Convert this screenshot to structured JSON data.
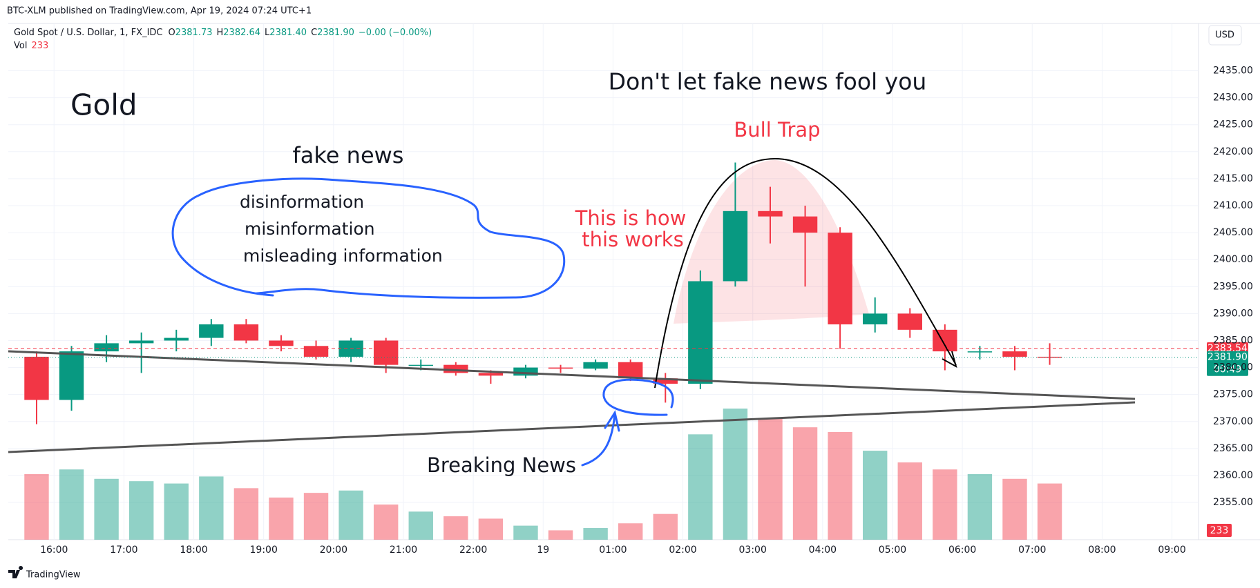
{
  "page": {
    "published": "BTC-XLM published on TradingView.com, Apr 19, 2024 07:24 UTC+1",
    "currency": "USD",
    "brand": "TradingView"
  },
  "chart_data": {
    "type": "candlestick",
    "title": "Gold Spot / U.S. Dollar, 1, FX_IDC",
    "ohlc_legend": [
      {
        "key": "O",
        "value": "2381.73"
      },
      {
        "key": "H",
        "value": "2382.64"
      },
      {
        "key": "L",
        "value": "2381.40"
      },
      {
        "key": "C",
        "value": "2381.90"
      }
    ],
    "change": "−0.00 (−0.00%)",
    "volume_label": "Vol",
    "last_volume": 233,
    "x": [
      15.5,
      16,
      16.5,
      17,
      17.5,
      18,
      18.5,
      19,
      19.5,
      20,
      20.5,
      21,
      21.5,
      22,
      22.5,
      23,
      23.5,
      24,
      24.5,
      25,
      25.5,
      26,
      26.5,
      27,
      27.5,
      28,
      28.5,
      29,
      29.5,
      30
    ],
    "open": [
      2382,
      2374,
      2383,
      2384.5,
      2385,
      2385.5,
      2388,
      2385,
      2384,
      2382,
      2385,
      2380.5,
      2380.5,
      2379,
      2378.5,
      2380,
      2379.8,
      2381,
      2378,
      2377,
      2396,
      2409,
      2408,
      2405,
      2388,
      2390,
      2387,
      2383,
      2383,
      2382
    ],
    "high": [
      2383,
      2384,
      2386,
      2386.5,
      2387,
      2389,
      2389,
      2386,
      2385,
      2385.5,
      2385.5,
      2381.5,
      2381,
      2379.5,
      2380.5,
      2380.5,
      2381.5,
      2381.5,
      2379,
      2398,
      2418,
      2413.5,
      2410,
      2406,
      2393,
      2391,
      2388,
      2384,
      2384,
      2384.5
    ],
    "low": [
      2369.5,
      2372,
      2381,
      2379,
      2383,
      2384,
      2384.5,
      2383,
      2381.5,
      2381,
      2379,
      2379.5,
      2378.5,
      2377,
      2378,
      2379,
      2379.5,
      2377.5,
      2373.5,
      2376,
      2395,
      2403,
      2395,
      2383.5,
      2386.5,
      2385.5,
      2379.5,
      2381.5,
      2379.5,
      2380.5
    ],
    "close": [
      2374,
      2383,
      2384.5,
      2385,
      2385.5,
      2388,
      2385,
      2384,
      2382,
      2385,
      2380.5,
      2380.5,
      2379,
      2378.5,
      2380,
      2379.8,
      2381,
      2378,
      2377,
      2396,
      2409,
      2408,
      2405,
      2388,
      2390,
      2387,
      2383,
      2383,
      2382,
      2381.9
    ],
    "volume": [
      280,
      300,
      260,
      250,
      240,
      270,
      220,
      180,
      200,
      210,
      150,
      120,
      100,
      90,
      60,
      40,
      50,
      70,
      110,
      450,
      560,
      520,
      480,
      460,
      380,
      330,
      300,
      280,
      260,
      240
    ],
    "up_color": "#089981",
    "down_color": "#f23645",
    "xlim": [
      15.345,
      32.38
    ],
    "xticks": [
      {
        "value": 16,
        "label": "16:00"
      },
      {
        "value": 17,
        "label": "17:00"
      },
      {
        "value": 18,
        "label": "18:00"
      },
      {
        "value": 19,
        "label": "19:00"
      },
      {
        "value": 20,
        "label": "20:00"
      },
      {
        "value": 21,
        "label": "21:00"
      },
      {
        "value": 22,
        "label": "22:00"
      },
      {
        "value": 23,
        "label": "19"
      },
      {
        "value": 24,
        "label": "01:00"
      },
      {
        "value": 25,
        "label": "02:00"
      },
      {
        "value": 26,
        "label": "03:00"
      },
      {
        "value": 27,
        "label": "04:00"
      },
      {
        "value": 28,
        "label": "05:00"
      },
      {
        "value": 29,
        "label": "06:00"
      },
      {
        "value": 30,
        "label": "07:00"
      },
      {
        "value": 31,
        "label": "08:00"
      },
      {
        "value": 32,
        "label": "09:00"
      }
    ],
    "ylim": [
      2348.1,
      2442.1
    ],
    "yticks": [
      {
        "value": 2355,
        "label": "2355.00"
      },
      {
        "value": 2360,
        "label": "2360.00"
      },
      {
        "value": 2365,
        "label": "2365.00"
      },
      {
        "value": 2370,
        "label": "2370.00"
      },
      {
        "value": 2375,
        "label": "2375.00"
      },
      {
        "value": 2380,
        "label": "2380.00"
      },
      {
        "value": 2385,
        "label": "2385.00"
      },
      {
        "value": 2390,
        "label": "2390.00"
      },
      {
        "value": 2395,
        "label": "2395.00"
      },
      {
        "value": 2400,
        "label": "2400.00"
      },
      {
        "value": 2405,
        "label": "2405.00"
      },
      {
        "value": 2410,
        "label": "2410.00"
      },
      {
        "value": 2415,
        "label": "2415.00"
      },
      {
        "value": 2420,
        "label": "2420.00"
      },
      {
        "value": 2425,
        "label": "2425.00"
      },
      {
        "value": 2430,
        "label": "2430.00"
      },
      {
        "value": 2435,
        "label": "2435.00"
      }
    ],
    "grid": true,
    "price_lines": [
      {
        "value": 2383.54,
        "label": "2383.54",
        "color": "#f23645"
      },
      {
        "value": 2381.9,
        "label": "2381.90",
        "color": "#089981"
      }
    ],
    "countdown": "00:49",
    "annotations": {
      "headline": "Don't let fake news fool you",
      "asset": "Gold",
      "fake_news": "fake news",
      "cloud_items": [
        "disinformation",
        "misinformation",
        "misleading information"
      ],
      "how": [
        "This is how",
        "this works"
      ],
      "bull_trap": "Bull Trap",
      "breaking": "Breaking News"
    }
  }
}
